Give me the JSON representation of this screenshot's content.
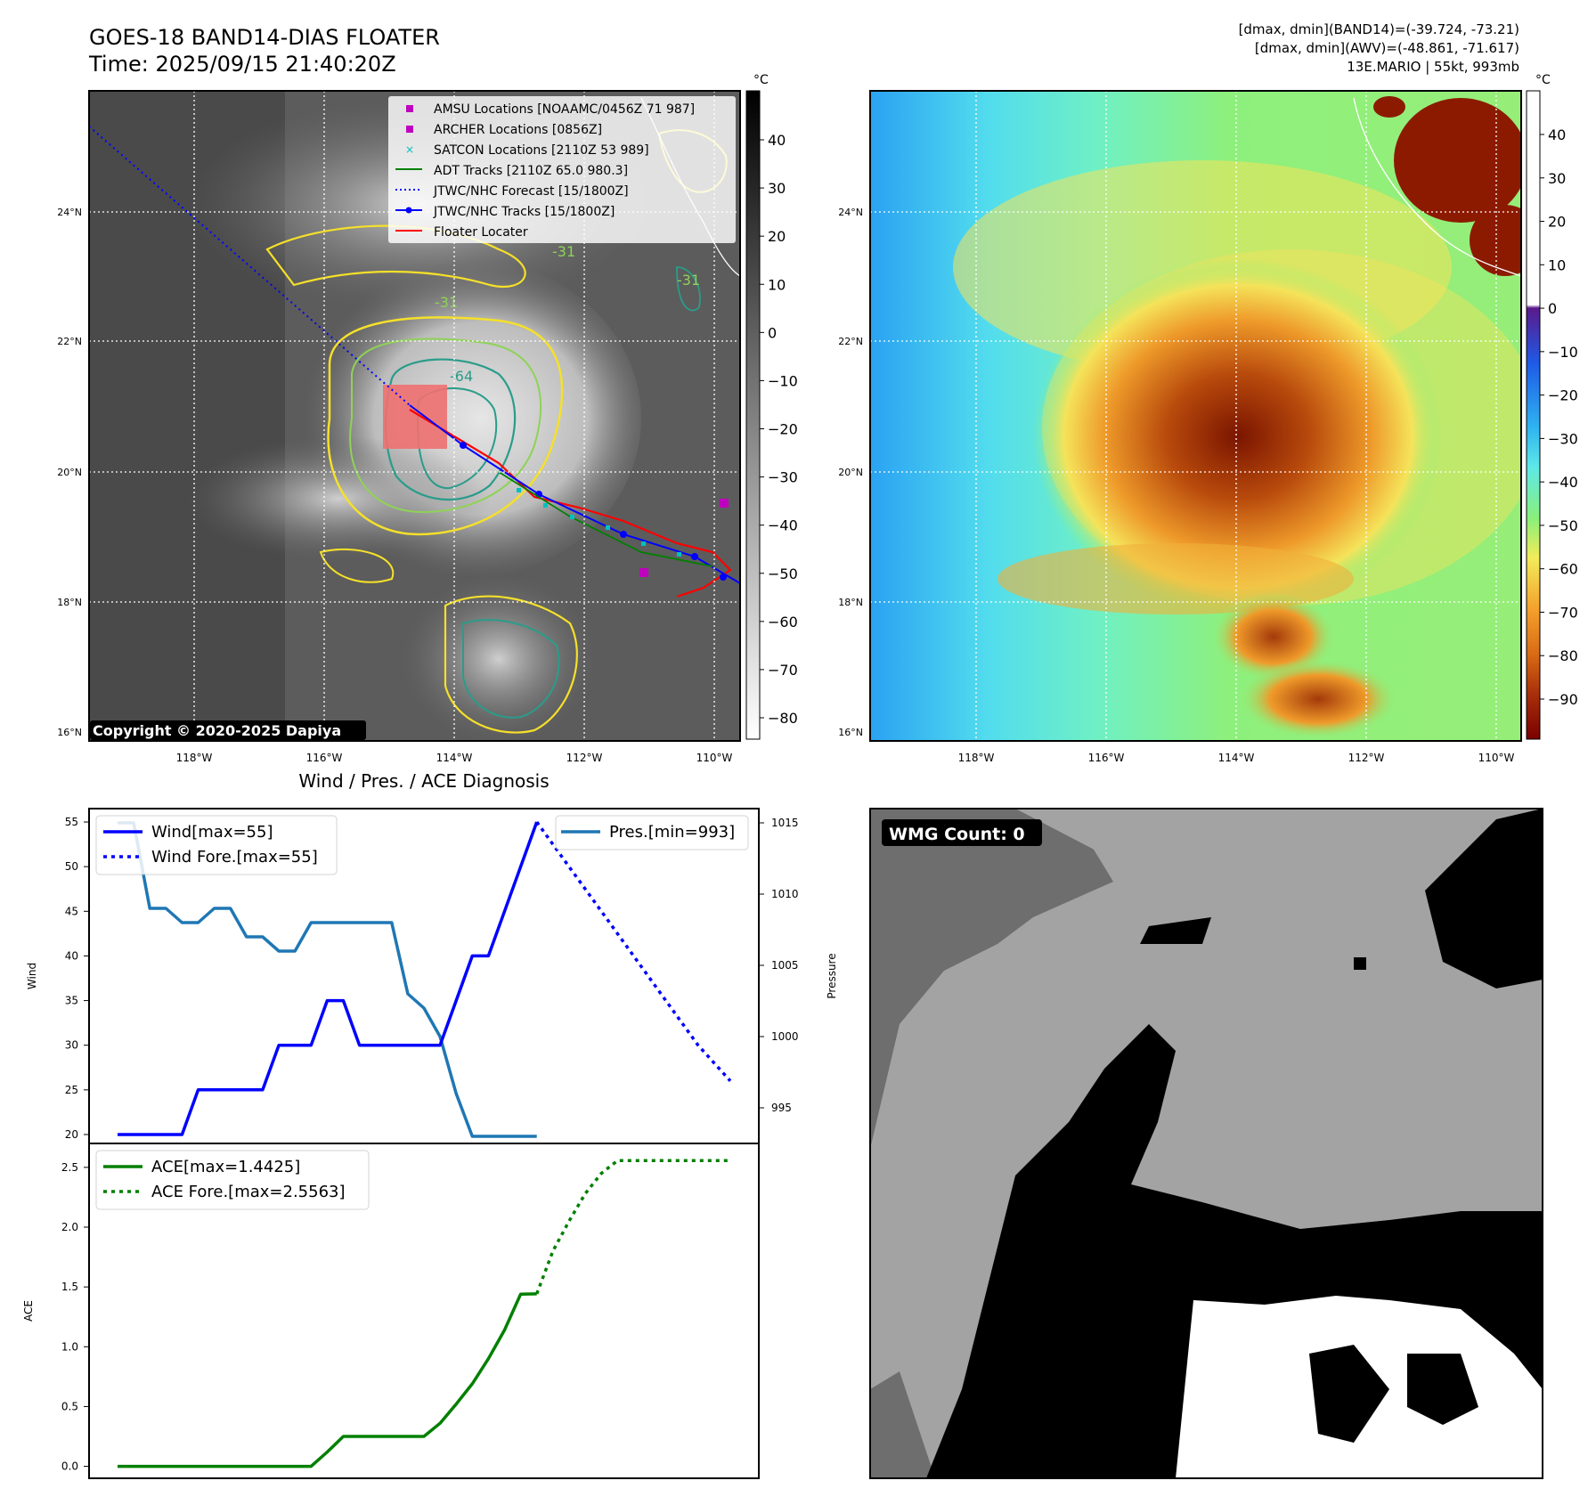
{
  "header": {
    "title": "GOES-18 BAND14-DIAS FLOATER",
    "time": "Time: 2025/09/15 21:40:20Z",
    "stats_band14": "[dmax, dmin](BAND14)=(-39.724, -73.21)",
    "stats_awv": "[dmax, dmin](AWV)=(-48.861, -71.617)",
    "storm": "13E.MARIO | 55kt, 993mb"
  },
  "map": {
    "lon_ticks": [
      "118°W",
      "116°W",
      "114°W",
      "112°W",
      "110°W"
    ],
    "lat_ticks": [
      "16°N",
      "18°N",
      "20°N",
      "22°N",
      "24°N"
    ],
    "copyright": "Copyright © 2020-2025 Dapiya",
    "contour_labels": [
      "-31",
      "-64",
      "-31",
      "-31"
    ],
    "legend": [
      {
        "label": "AMSU Locations [NOAAMC/0456Z 71 987]",
        "marker": "square",
        "color": "#bf00bf"
      },
      {
        "label": "ARCHER Locations [0856Z]",
        "marker": "square",
        "color": "#bf00bf"
      },
      {
        "label": "SATCON Locations [2110Z 53 989]",
        "marker": "x",
        "color": "#00bfbf"
      },
      {
        "label": "ADT Tracks [2110Z 65.0 980.3]",
        "marker": "line",
        "color": "#008000"
      },
      {
        "label": "JTWC/NHC Forecast [15/1800Z]",
        "marker": "dotted",
        "color": "#0000ff"
      },
      {
        "label": "JTWC/NHC Tracks [15/1800Z]",
        "marker": "line-dot",
        "color": "#0000ff"
      },
      {
        "label": "Floater Locater",
        "marker": "line",
        "color": "#ff0000"
      }
    ]
  },
  "colorbar_gray": {
    "unit": "°C",
    "ticks": [
      "40",
      "30",
      "20",
      "10",
      "0",
      "−10",
      "−20",
      "−30",
      "−40",
      "−50",
      "−60",
      "−70",
      "−80"
    ]
  },
  "colorbar_awv": {
    "unit": "°C",
    "ticks": [
      "40",
      "30",
      "20",
      "10",
      "0",
      "−10",
      "−20",
      "−30",
      "−40",
      "−50",
      "−60",
      "−70",
      "−80",
      "−90"
    ]
  },
  "diagnosis": {
    "title": "Wind / Pres. / ACE Diagnosis",
    "wind_ylabel": "Wind",
    "pres_ylabel": "Pressure",
    "ace_ylabel": "ACE",
    "legend_wind": "Wind[max=55]",
    "legend_wind_fore": "Wind Fore.[max=55]",
    "legend_pres": "Pres.[min=993]",
    "legend_ace": "ACE[max=1.4425]",
    "legend_ace_fore": "ACE Fore.[max=2.5563]"
  },
  "wmg": {
    "label": "WMG Count: 0"
  },
  "chart_data": [
    {
      "type": "line",
      "title": "Wind / Pres. / ACE Diagnosis",
      "ylabel": "Wind",
      "ylim": [
        19,
        56.5
      ],
      "yticks": [
        20,
        25,
        30,
        35,
        40,
        45,
        50,
        55
      ],
      "series": [
        {
          "name": "Wind[max=55]",
          "color": "#0000ff",
          "style": "solid",
          "x": [
            0,
            1,
            2,
            3,
            4,
            5,
            6,
            7,
            8,
            9,
            10,
            11,
            12,
            13,
            14,
            15,
            16,
            17,
            18,
            19,
            20,
            21,
            22,
            23,
            24,
            25,
            26
          ],
          "values": [
            20,
            20,
            20,
            20,
            20,
            25,
            25,
            25,
            25,
            25,
            30,
            30,
            30,
            35,
            35,
            30,
            30,
            30,
            30,
            30,
            30,
            35,
            40,
            40,
            45,
            50,
            55
          ]
        },
        {
          "name": "Wind Fore.[max=55]",
          "color": "#0000ff",
          "style": "dotted",
          "x": [
            26,
            28,
            30,
            32,
            34,
            36,
            38
          ],
          "values": [
            55,
            50,
            45,
            40,
            35,
            30,
            26
          ]
        }
      ]
    },
    {
      "type": "line",
      "ylabel": "Pressure",
      "ylim": [
        992.5,
        1016
      ],
      "yticks": [
        995,
        1000,
        1005,
        1010,
        1015
      ],
      "series": [
        {
          "name": "Pres.[min=993]",
          "color": "#1f77b4",
          "style": "solid",
          "x": [
            0,
            1,
            2,
            3,
            4,
            5,
            6,
            7,
            8,
            9,
            10,
            11,
            12,
            13,
            14,
            15,
            16,
            17,
            18,
            19,
            20,
            21,
            22,
            23,
            24,
            25,
            26
          ],
          "values": [
            1015,
            1015,
            1009,
            1009,
            1008,
            1008,
            1009,
            1009,
            1007,
            1007,
            1006,
            1006,
            1008,
            1008,
            1008,
            1008,
            1008,
            1008,
            1003,
            1002,
            1000,
            996,
            993,
            993,
            993,
            993,
            993
          ]
        }
      ]
    },
    {
      "type": "line",
      "ylabel": "ACE",
      "ylim": [
        -0.1,
        2.7
      ],
      "yticks": [
        0.0,
        0.5,
        1.0,
        1.5,
        2.0,
        2.5
      ],
      "ytick_labels": [
        "0.0",
        "0.5",
        "1.0",
        "1.5",
        "2.0",
        "2.5"
      ],
      "series": [
        {
          "name": "ACE[max=1.4425]",
          "color": "#008000",
          "style": "solid",
          "x": [
            0,
            2,
            4,
            6,
            8,
            10,
            12,
            13,
            14,
            16,
            17,
            18,
            19,
            20,
            21,
            22,
            23,
            24,
            25,
            26
          ],
          "values": [
            0,
            0,
            0,
            0,
            0,
            0,
            0,
            0.12,
            0.25,
            0.25,
            0.25,
            0.25,
            0.25,
            0.36,
            0.52,
            0.69,
            0.9,
            1.14,
            1.44,
            1.4425
          ]
        },
        {
          "name": "ACE Fore.[max=2.5563]",
          "color": "#008000",
          "style": "dotted",
          "x": [
            26,
            27,
            28,
            29,
            30,
            31,
            32,
            34,
            36,
            38
          ],
          "values": [
            1.4425,
            1.8,
            2.05,
            2.28,
            2.45,
            2.556,
            2.5563,
            2.5563,
            2.5563,
            2.5563
          ]
        }
      ]
    }
  ]
}
